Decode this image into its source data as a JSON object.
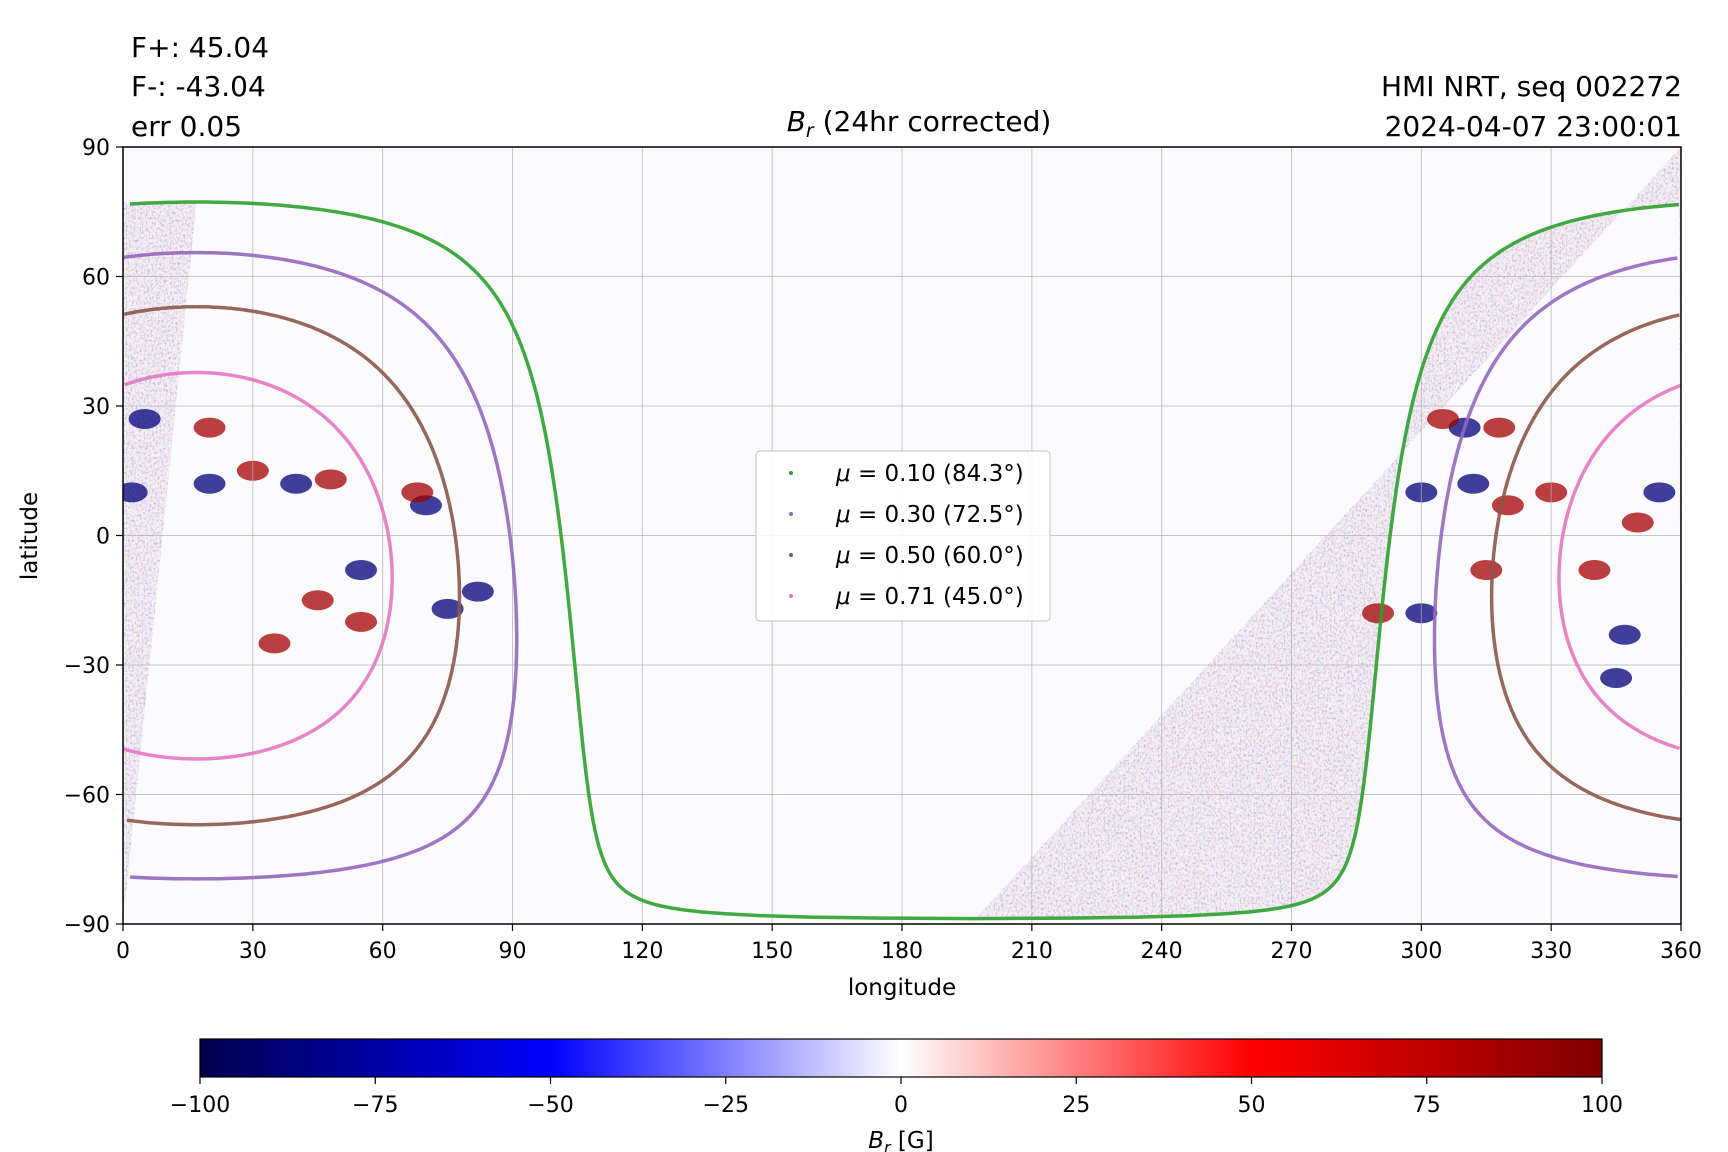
{
  "header": {
    "flux_pos": "F+: 45.04",
    "flux_neg": "F-: -43.04",
    "error": "err 0.05",
    "instrument": "HMI NRT, seq 002272",
    "timestamp": "2024-04-07 23:00:01"
  },
  "chart_data": {
    "type": "heatmap",
    "title_var": "B",
    "title_sub": "r",
    "title_rest": " (24hr corrected)",
    "xlabel": "longitude",
    "ylabel": "latitude",
    "xlim": [
      0,
      360
    ],
    "ylim": [
      -90,
      90
    ],
    "xticks": [
      0,
      30,
      60,
      90,
      120,
      150,
      180,
      210,
      240,
      270,
      300,
      330,
      360
    ],
    "yticks": [
      -90,
      -60,
      -30,
      0,
      30,
      60,
      90
    ],
    "ytick_labels": [
      "−90",
      "−60",
      "−30",
      "0",
      "30",
      "60",
      "90"
    ],
    "grid": true,
    "disk_center_longitude": 17,
    "disk_center_latitude": -7,
    "legend_position": "center",
    "series": [
      {
        "name": "μ = 0.10 (84.3°)",
        "mu_label": "0.10",
        "angle_label": "(84.3°)",
        "mu": 0.1,
        "color": "#2ca02c"
      },
      {
        "name": "μ = 0.30 (72.5°)",
        "mu_label": "0.30",
        "angle_label": "(72.5°)",
        "mu": 0.3,
        "color": "#9467bd"
      },
      {
        "name": "μ = 0.50 (60.0°)",
        "mu_label": "0.50",
        "angle_label": "(60.0°)",
        "mu": 0.5,
        "color": "#8c564b"
      },
      {
        "name": "μ = 0.71 (45.0°)",
        "mu_label": "0.71",
        "angle_label": "(45.0°)",
        "mu": 0.71,
        "color": "#e377c2"
      }
    ],
    "active_regions": [
      {
        "lon": 5,
        "lat": 27,
        "polarity": "negative"
      },
      {
        "lon": 2,
        "lat": 10,
        "polarity": "negative"
      },
      {
        "lon": 20,
        "lat": 25,
        "polarity": "positive"
      },
      {
        "lon": 30,
        "lat": 15,
        "polarity": "positive"
      },
      {
        "lon": 20,
        "lat": 12,
        "polarity": "negative"
      },
      {
        "lon": 40,
        "lat": 12,
        "polarity": "negative"
      },
      {
        "lon": 48,
        "lat": 13,
        "polarity": "positive"
      },
      {
        "lon": 70,
        "lat": 7,
        "polarity": "negative"
      },
      {
        "lon": 68,
        "lat": 10,
        "polarity": "positive"
      },
      {
        "lon": 35,
        "lat": -25,
        "polarity": "positive"
      },
      {
        "lon": 45,
        "lat": -15,
        "polarity": "positive"
      },
      {
        "lon": 55,
        "lat": -20,
        "polarity": "positive"
      },
      {
        "lon": 75,
        "lat": -17,
        "polarity": "negative"
      },
      {
        "lon": 82,
        "lat": -13,
        "polarity": "negative"
      },
      {
        "lon": 55,
        "lat": -8,
        "polarity": "negative"
      },
      {
        "lon": 310,
        "lat": 25,
        "polarity": "negative"
      },
      {
        "lon": 305,
        "lat": 27,
        "polarity": "positive"
      },
      {
        "lon": 318,
        "lat": 25,
        "polarity": "positive"
      },
      {
        "lon": 312,
        "lat": 12,
        "polarity": "negative"
      },
      {
        "lon": 320,
        "lat": 7,
        "polarity": "positive"
      },
      {
        "lon": 300,
        "lat": 10,
        "polarity": "negative"
      },
      {
        "lon": 315,
        "lat": -8,
        "polarity": "positive"
      },
      {
        "lon": 300,
        "lat": -18,
        "polarity": "negative"
      },
      {
        "lon": 290,
        "lat": -18,
        "polarity": "positive"
      },
      {
        "lon": 340,
        "lat": -8,
        "polarity": "positive"
      },
      {
        "lon": 347,
        "lat": -23,
        "polarity": "negative"
      },
      {
        "lon": 355,
        "lat": 10,
        "polarity": "negative"
      },
      {
        "lon": 350,
        "lat": 3,
        "polarity": "positive"
      },
      {
        "lon": 345,
        "lat": -33,
        "polarity": "negative"
      },
      {
        "lon": 330,
        "lat": 10,
        "polarity": "positive"
      }
    ]
  },
  "colorbar": {
    "label_var": "B",
    "label_sub": "r",
    "label_unit": " [G]",
    "min": -100,
    "max": 100,
    "ticks": [
      -100,
      -75,
      -50,
      -25,
      0,
      25,
      50,
      75,
      100
    ],
    "tick_labels": [
      "−100",
      "−75",
      "−50",
      "−25",
      "0",
      "25",
      "50",
      "75",
      "100"
    ],
    "colors": [
      "#00004c",
      "#0000ff",
      "#ffffff",
      "#ff0000",
      "#7f0000"
    ]
  }
}
